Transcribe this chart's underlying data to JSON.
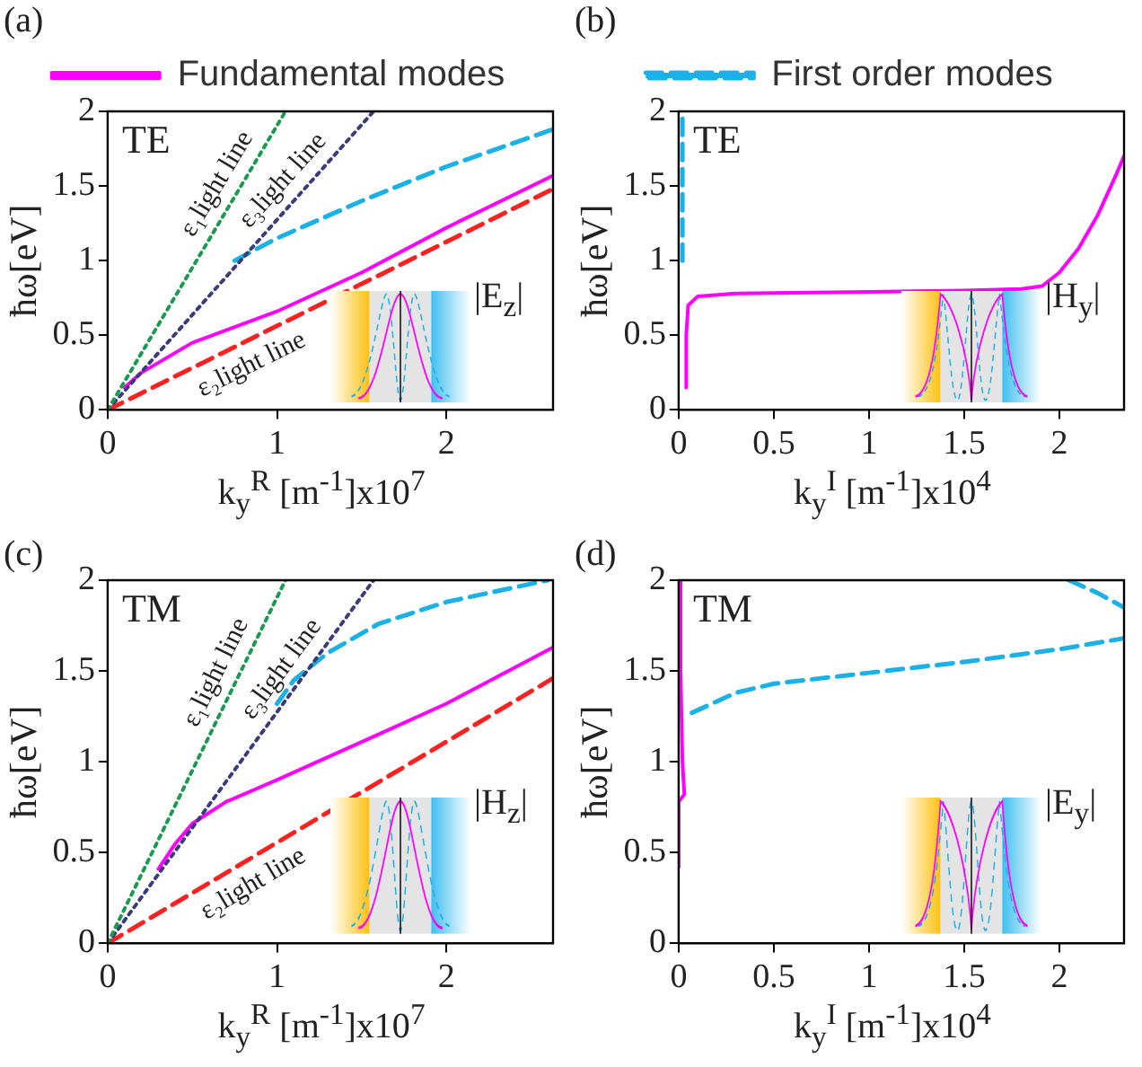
{
  "chart_data": [
    {
      "type": "line",
      "title": "(a)",
      "xlabel": "k$_{y}$$^{R}$ [m$^{-1}$]x10$^{7}$",
      "ylabel": "ħω[eV]",
      "xlim": [
        0,
        2.63
      ],
      "xticks": [
        0,
        1,
        2
      ],
      "ylim": [
        0,
        2
      ],
      "yticks": [
        0,
        0.5,
        1,
        1.5,
        2
      ],
      "legend": "top",
      "marker": "none",
      "annotations": [
        "TE",
        "|E$_{z}$|",
        "ε₁light line",
        "ε₃light line",
        "ε₂light line"
      ],
      "series": [
        {
          "color": "#1a9a50",
          "line_style": "dotted",
          "x": [
            0,
            1.05
          ],
          "values": [
            0,
            2
          ]
        },
        {
          "color": "#3b3b7a",
          "line_style": "dotted",
          "x": [
            0,
            1.57
          ],
          "values": [
            0,
            2
          ]
        },
        {
          "color": "#ff2020",
          "line_style": "dashed",
          "x": [
            0,
            2.63
          ],
          "values": [
            0,
            1.48
          ]
        },
        {
          "name": "Fundamental modes",
          "color": "#ff00ff",
          "line_style": "solid",
          "x": [
            0.1,
            0.2,
            0.5,
            1,
            1.5,
            2,
            2.63
          ],
          "values": [
            0.15,
            0.25,
            0.45,
            0.66,
            0.92,
            1.22,
            1.57
          ]
        },
        {
          "color": "#1ab0e8",
          "line_style": "dashed",
          "x": [
            0.75,
            1,
            1.5,
            2,
            2.63
          ],
          "values": [
            1,
            1.15,
            1.4,
            1.63,
            1.88
          ]
        }
      ]
    },
    {
      "type": "line",
      "title": "(b)",
      "xlabel": "k$_{y}$$^{I}$ [m$^{-1}$]x10$^{4}$",
      "ylabel": "ħω[eV]",
      "xlim": [
        0,
        2.34
      ],
      "xticks": [
        0,
        0.5,
        1,
        1.5,
        2
      ],
      "ylim": [
        0,
        2
      ],
      "yticks": [
        0,
        0.5,
        1,
        1.5,
        2
      ],
      "legend": "top",
      "marker": "none",
      "annotations": [
        "TE",
        "|H$_{y}$|"
      ],
      "series": [
        {
          "color": "#ff00ff",
          "line_style": "solid",
          "x": [
            0.04,
            0.04,
            0.05,
            0.1,
            0.3,
            1,
            1.5,
            1.8,
            1.91,
            2,
            2.1,
            2.2,
            2.3,
            2.34
          ],
          "values": [
            0.15,
            0.5,
            0.7,
            0.76,
            0.78,
            0.79,
            0.8,
            0.81,
            0.83,
            0.92,
            1.08,
            1.3,
            1.58,
            1.7
          ]
        },
        {
          "name": "First order modes",
          "color": "#1ab0e8",
          "line_style": "dashed",
          "x": [
            0.02,
            0.02,
            0.02
          ],
          "values": [
            1,
            1.5,
            2
          ]
        }
      ]
    },
    {
      "type": "line",
      "title": "(c)",
      "xlabel": "k$_{y}$$^{R}$ [m$^{-1}$]x10$^{7}$",
      "ylabel": "ħω[eV]",
      "xlim": [
        0,
        2.63
      ],
      "xticks": [
        0,
        1,
        2
      ],
      "ylim": [
        0,
        2
      ],
      "yticks": [
        0,
        0.5,
        1,
        1.5,
        2
      ],
      "marker": "none",
      "annotations": [
        "TM",
        "|H$_{z}$|",
        "ε₁light line",
        "ε₃light line",
        "ε₂light line"
      ],
      "series": [
        {
          "color": "#1a9a50",
          "line_style": "dotted",
          "x": [
            0,
            1.05
          ],
          "values": [
            0,
            2
          ]
        },
        {
          "color": "#3b3b7a",
          "line_style": "dotted",
          "x": [
            0,
            1.57
          ],
          "values": [
            0,
            2
          ]
        },
        {
          "color": "#ff2020",
          "line_style": "dashed",
          "x": [
            0,
            2.63
          ],
          "values": [
            0,
            1.46
          ]
        },
        {
          "color": "#ff00ff",
          "line_style": "solid",
          "x": [
            0.3,
            0.4,
            0.5,
            0.7,
            1,
            1.55,
            2,
            2.63
          ],
          "values": [
            0.41,
            0.55,
            0.66,
            0.78,
            0.9,
            1.13,
            1.32,
            1.63
          ]
        },
        {
          "color": "#1ab0e8",
          "line_style": "dashed",
          "x": [
            1,
            1.1,
            1.3,
            1.6,
            2,
            2.4,
            2.6
          ],
          "values": [
            1.32,
            1.45,
            1.6,
            1.76,
            1.88,
            1.96,
            2
          ]
        }
      ]
    },
    {
      "type": "line",
      "title": "(d)",
      "xlabel": "k$_{y}$$^{I}$ [m$^{-1}$]x10$^{4}$",
      "ylabel": "ħω[eV]",
      "xlim": [
        0,
        2.34
      ],
      "xticks": [
        0,
        0.5,
        1,
        1.5,
        2
      ],
      "ylim": [
        0,
        2
      ],
      "yticks": [
        0,
        0.5,
        1,
        1.5,
        2
      ],
      "marker": "none",
      "annotations": [
        "TM",
        "|E$_{y}$|"
      ],
      "series": [
        {
          "color": "#ff00ff",
          "line_style": "solid",
          "x": [
            0,
            0,
            0.03,
            0.02,
            0.01,
            0.01
          ],
          "values": [
            0.42,
            0.78,
            0.82,
            1,
            1.5,
            2
          ]
        },
        {
          "color": "#1ab0e8",
          "line_style": "dashed",
          "x": [
            0.07,
            0.3,
            0.5,
            1,
            1.5,
            2,
            2.34
          ],
          "values": [
            1.27,
            1.38,
            1.43,
            1.49,
            1.55,
            1.62,
            1.68
          ]
        },
        {
          "color": "#1ab0e8",
          "line_style": "dashed",
          "x": [
            2.05,
            2.2,
            2.34
          ],
          "values": [
            2,
            1.93,
            1.85
          ]
        }
      ]
    }
  ]
}
